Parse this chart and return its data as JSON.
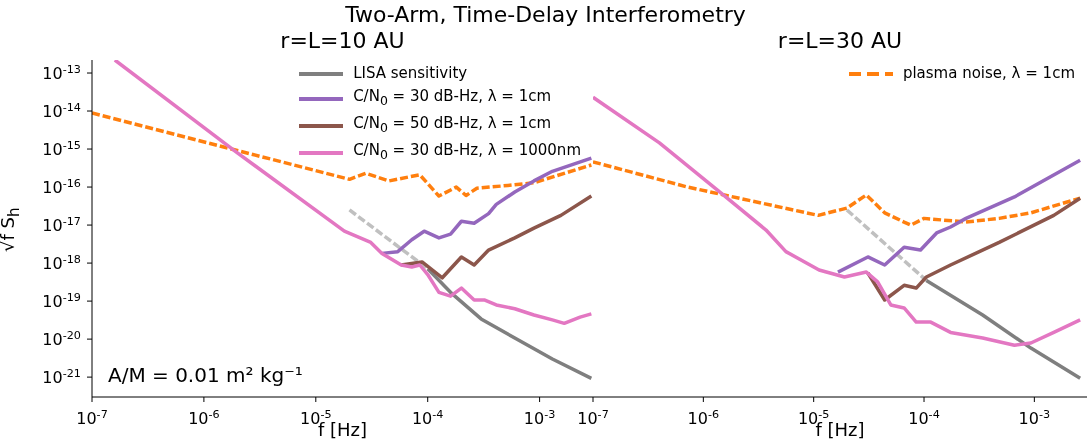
{
  "chart_data": [
    {
      "type": "line",
      "title": "Two-Arm, Time-Delay Interferometry",
      "subtitle": "r=L=10 AU",
      "xlabel": "f [Hz]",
      "ylabel": "√f S$_{h}$",
      "log": "xy",
      "legend": "top right",
      "xlim": [
        1e-07,
        0.003
      ],
      "ylim": [
        3e-22,
        2.2e-13
      ],
      "xticks": [
        {
          "value": 1e-07,
          "label": "10$^{-7}$"
        },
        {
          "value": 1e-06,
          "label": "10$^{-6}$"
        },
        {
          "value": 1e-05,
          "label": "10$^{-5}$"
        },
        {
          "value": 0.0001,
          "label": "10$^{-4}$"
        },
        {
          "value": 0.001,
          "label": "10$^{-3}$"
        }
      ],
      "yticks": [
        {
          "value": 1e-21,
          "label": "10$^{-21}$"
        },
        {
          "value": 1e-20,
          "label": "10$^{-20}$"
        },
        {
          "value": 1e-19,
          "label": "10$^{-19}$"
        },
        {
          "value": 1e-18,
          "label": "10$^{-18}$"
        },
        {
          "value": 1e-17,
          "label": "10$^{-17}$"
        },
        {
          "value": 1e-16,
          "label": "10$^{-16}$"
        },
        {
          "value": 1e-15,
          "label": "10$^{-15}$"
        },
        {
          "value": 1e-14,
          "label": "10$^{-14}$"
        },
        {
          "value": 1e-13,
          "label": "10$^{-13}$"
        }
      ],
      "annotations": [
        "A/M = 0.01 m² kg⁻¹"
      ],
      "series": [
        {
          "color": "#ff7f0e",
          "line_style": "dashed",
          "x": [
            1e-07,
            1.95e-06,
            2e-05,
            2.8e-05,
            4.5e-05,
            8.5e-05,
            0.000126,
            0.00018,
            0.00022,
            0.000275,
            0.00052,
            0.00089,
            0.0029
          ],
          "values": [
            8.9e-15,
            9.3e-16,
            1.6e-16,
            2.3e-16,
            1.45e-16,
            2.1e-16,
            5.8e-17,
            1e-16,
            6e-17,
            9.3e-17,
            1.1e-16,
            1.3e-16,
            3.8e-16
          ]
        },
        {
          "color": "#c0c0c0",
          "line_style": "dashed",
          "x": [
            2e-05,
            0.0001
          ],
          "values": [
            2.5e-17,
            7.1e-19
          ]
        },
        {
          "name": "LISA sensitivity",
          "color": "#7f7f7f",
          "x": [
            0.0001,
            0.00016,
            0.0003,
            0.0006,
            0.0013,
            0.0029
          ],
          "values": [
            7.1e-19,
            1.7e-19,
            3.4e-20,
            1.07e-20,
            3e-21,
            9.3e-22
          ]
        },
        {
          "name": "C/N$_{0}$ = 30 dB-Hz, λ = 1cm",
          "color": "#9467bd",
          "x": [
            3.9e-05,
            5.4e-05,
            7.2e-05,
            9.3e-05,
            0.000126,
            0.00016,
            0.0002,
            0.00026,
            0.00035,
            0.00041,
            0.0006,
            0.00089,
            0.0013,
            0.0029
          ],
          "values": [
            1.8e-18,
            2e-18,
            4.1e-18,
            6.9e-18,
            4.6e-18,
            5.8e-18,
            1.26e-17,
            1.12e-17,
            2e-17,
            3.5e-17,
            7.4e-17,
            1.45e-16,
            2.6e-16,
            5.8e-16
          ]
        },
        {
          "name": "C/N$_{0}$ = 50 dB-Hz, λ = 1cm",
          "color": "#8c564b",
          "x": [
            5.8e-05,
            8.9e-05,
            0.000135,
            0.0002,
            0.00026,
            0.00035,
            0.0006,
            0.00089,
            0.00155,
            0.0029
          ],
          "values": [
            8.9e-19,
            1.07e-18,
            4.1e-19,
            1.45e-18,
            8.9e-19,
            2.2e-18,
            4.6e-18,
            8.3e-18,
            1.8e-17,
            5.8e-17
          ]
        },
        {
          "name": "C/N$_{0}$ = 30 dB-Hz, λ = 1000nm",
          "color": "#e377c2",
          "x": [
            1.6e-07,
            1.95e-06,
            1.8e-05,
            3.1e-05,
            3.9e-05,
            5.8e-05,
            7.2e-05,
            8.5e-05,
            0.0001,
            0.000126,
            0.00016,
            0.0002,
            0.00026,
            0.00032,
            0.00041,
            0.0006,
            0.00089,
            0.0013,
            0.00166,
            0.0023,
            0.0029
          ],
          "values": [
            2.2e-13,
            8.3e-16,
            6.9e-18,
            3.5e-18,
            1.8e-18,
            8.9e-19,
            7.9e-19,
            8.9e-19,
            5e-19,
            1.7e-19,
            1.35e-19,
            2.2e-19,
            1.07e-19,
            1.07e-19,
            7.9e-20,
            6.3e-20,
            4.3e-20,
            3.2e-20,
            2.6e-20,
            3.8e-20,
            4.6e-20
          ]
        }
      ]
    },
    {
      "type": "line",
      "title": "r=L=30 AU",
      "xlabel": "f [Hz]",
      "log": "xy",
      "legend": "top right",
      "tick_labels": "x",
      "xlim": [
        1e-07,
        0.003
      ],
      "ylim": [
        3e-22,
        2.2e-13
      ],
      "xticks": [
        {
          "value": 1e-07,
          "label": "10$^{-7}$"
        },
        {
          "value": 1e-06,
          "label": "10$^{-6}$"
        },
        {
          "value": 1e-05,
          "label": "10$^{-5}$"
        },
        {
          "value": 0.0001,
          "label": "10$^{-4}$"
        },
        {
          "value": 0.001,
          "label": "10$^{-3}$"
        }
      ],
      "yticks": [
        {
          "value": 1e-21,
          "label": null
        },
        {
          "value": 1e-20,
          "label": null
        },
        {
          "value": 1e-19,
          "label": null
        },
        {
          "value": 1e-18,
          "label": null
        },
        {
          "value": 1e-17,
          "label": null
        },
        {
          "value": 1e-16,
          "label": null
        },
        {
          "value": 1e-15,
          "label": null
        },
        {
          "value": 1e-14,
          "label": null
        },
        {
          "value": 1e-13,
          "label": null
        }
      ],
      "series": [
        {
          "name": "plasma noise, λ = 1cm",
          "color": "#ff7f0e",
          "line_style": "dashed",
          "x": [
            1e-07,
            7.2e-07,
            1.1e-05,
            2e-05,
            3e-05,
            4.4e-05,
            6.6e-05,
            7.6e-05,
            0.0001,
            0.00024,
            0.00048,
            0.00093,
            0.0026
          ],
          "values": [
            4.6e-16,
            1e-16,
            1.8e-17,
            2.8e-17,
            6.2e-17,
            2.1e-17,
            1.2e-17,
            1e-17,
            1.5e-17,
            1.2e-17,
            1.5e-17,
            2.1e-17,
            5.1e-17
          ]
        },
        {
          "color": "#c0c0c0",
          "line_style": "dashed",
          "x": [
            2e-05,
            0.000105
          ],
          "values": [
            2.5e-17,
            3.5e-19
          ]
        },
        {
          "color": "#7f7f7f",
          "x": [
            0.000105,
            0.00034,
            0.00093,
            0.0026
          ],
          "values": [
            3.5e-19,
            4.3e-20,
            5.8e-21,
            9.3e-22
          ]
        },
        {
          "color": "#9467bd",
          "x": [
            1.66e-05,
            3.1e-05,
            4.4e-05,
            6.6e-05,
            9.3e-05,
            0.00013,
            0.000174,
            0.00024,
            0.00066,
            0.0026
          ],
          "values": [
            5.8e-19,
            1.45e-18,
            8.9e-19,
            2.6e-18,
            2.2e-18,
            6.2e-18,
            8.9e-18,
            1.5e-17,
            5.5e-17,
            5.1e-16
          ]
        },
        {
          "color": "#8c564b",
          "x": [
            3.1e-05,
            4.4e-05,
            6.6e-05,
            8.5e-05,
            0.000105,
            0.000174,
            0.00048,
            0.0015,
            0.0026
          ],
          "values": [
            5.5e-19,
            1.07e-19,
            2.6e-19,
            2.2e-19,
            4.3e-19,
            8.9e-19,
            3.5e-18,
            1.8e-17,
            5.1e-17
          ]
        },
        {
          "color": "#e377c2",
          "x": [
            1e-07,
            4e-07,
            1.45e-06,
            3.7e-06,
            5.6e-06,
            1.12e-05,
            1.9e-05,
            3e-05,
            3.8e-05,
            5e-05,
            6.6e-05,
            8.5e-05,
            0.000115,
            0.000174,
            0.00034,
            0.00066,
            0.00093,
            0.0015,
            0.0026
          ],
          "values": [
            2.3e-14,
            1.45e-15,
            6.9e-17,
            7.4e-18,
            2e-18,
            6.6e-19,
            4.3e-19,
            5.8e-19,
            3.2e-19,
            7.9e-20,
            6.6e-20,
            2.8e-20,
            2.8e-20,
            1.5e-20,
            1.07e-20,
            6.9e-21,
            7.9e-21,
            1.5e-20,
            3.2e-20
          ]
        }
      ]
    }
  ]
}
